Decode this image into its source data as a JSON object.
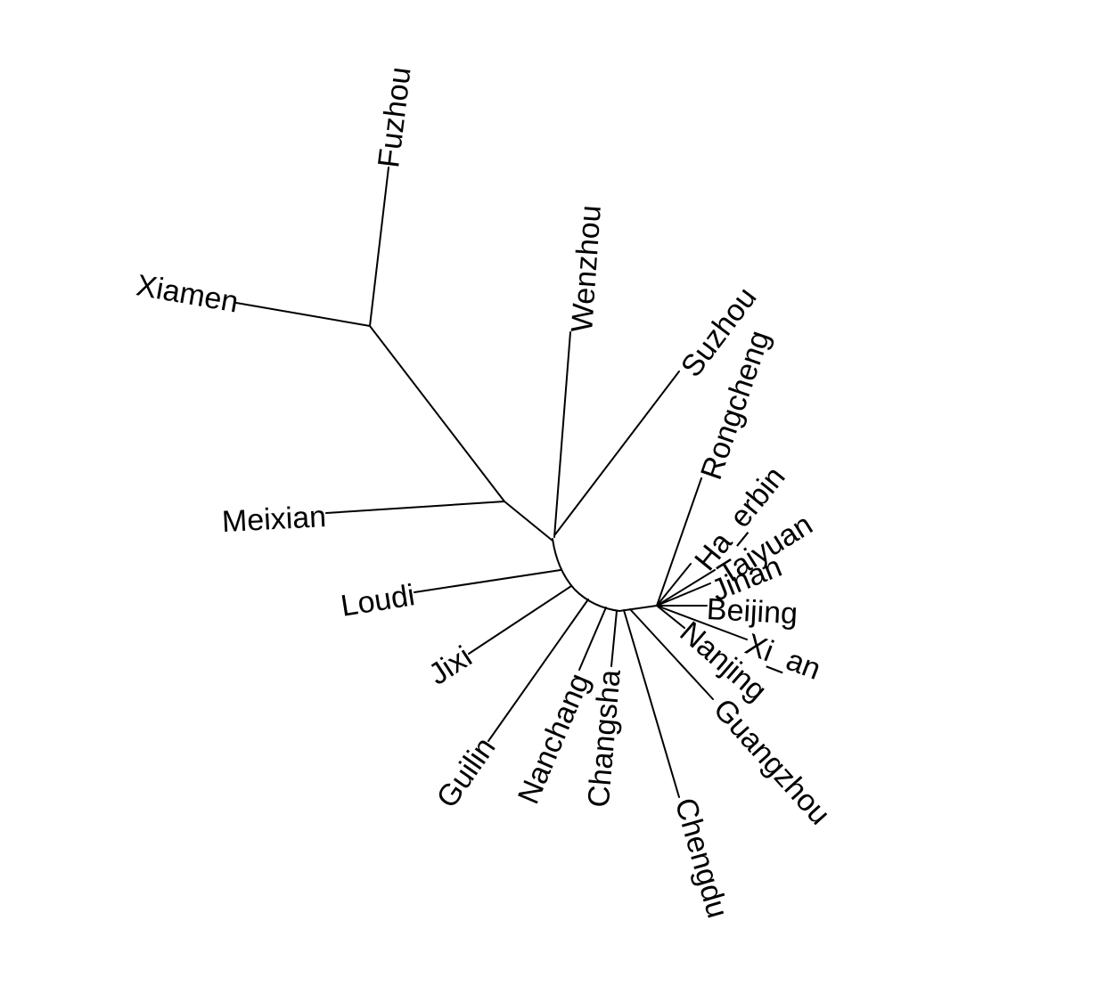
{
  "diagram": {
    "type": "unrooted phylogenetic tree",
    "tip_labels": {
      "fuzhou": "Fuzhou",
      "xiamen": "Xiamen",
      "wenzhou": "Wenzhou",
      "suzhou": "Suzhou",
      "rongcheng": "Rongcheng",
      "ha_erbin": "Ha_erbin",
      "taiyuan": "Taiyuan",
      "jinan": "Jinan",
      "beijing": "Beijing",
      "xi_an": "Xi_an",
      "nanjing": "Nanjing",
      "guangzhou": "Guangzhou",
      "chengdu": "Chengdu",
      "changsha": "Changsha",
      "nanchang": "Nanchang",
      "guilin": "Guilin",
      "jixi": "Jixi",
      "loudi": "Loudi",
      "meixian": "Meixian"
    },
    "colors": {
      "branch": "#000000",
      "label": "#000000",
      "background": "#ffffff"
    }
  }
}
